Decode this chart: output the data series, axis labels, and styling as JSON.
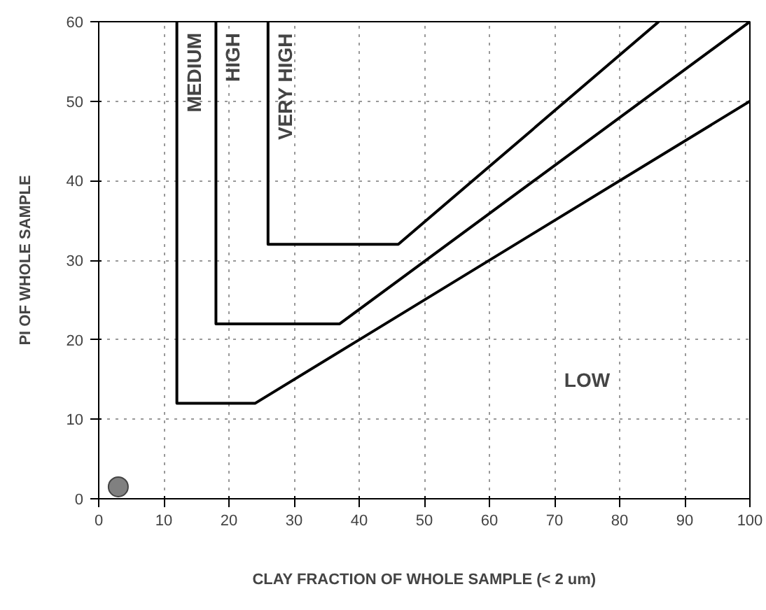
{
  "chart_data": {
    "type": "line",
    "xlabel": "CLAY FRACTION OF WHOLE SAMPLE (< 2 um)",
    "ylabel": "PI OF WHOLE SAMPLE",
    "xlim": [
      0,
      100
    ],
    "ylim": [
      0,
      60
    ],
    "xticks": [
      0,
      10,
      20,
      30,
      40,
      50,
      60,
      70,
      80,
      90,
      100
    ],
    "yticks": [
      0,
      10,
      20,
      30,
      40,
      50,
      60
    ],
    "grid": true,
    "line_style": "solid",
    "marker": "none",
    "series": [
      {
        "name": "MEDIUM",
        "color": "#000000",
        "x": [
          12,
          12,
          24,
          100
        ],
        "values": [
          60,
          12,
          12,
          50
        ]
      },
      {
        "name": "HIGH",
        "color": "#000000",
        "x": [
          18,
          18,
          37,
          100
        ],
        "values": [
          60,
          22,
          22,
          60
        ]
      },
      {
        "name": "VERY HIGH",
        "color": "#000000",
        "x": [
          26,
          26,
          46,
          86
        ],
        "values": [
          60,
          32,
          32,
          60
        ]
      },
      {
        "type": "scatter",
        "marker": "circle",
        "color": "#808080",
        "x": [
          3
        ],
        "values": [
          1.5
        ]
      }
    ],
    "annotations": [
      "LOW"
    ]
  }
}
